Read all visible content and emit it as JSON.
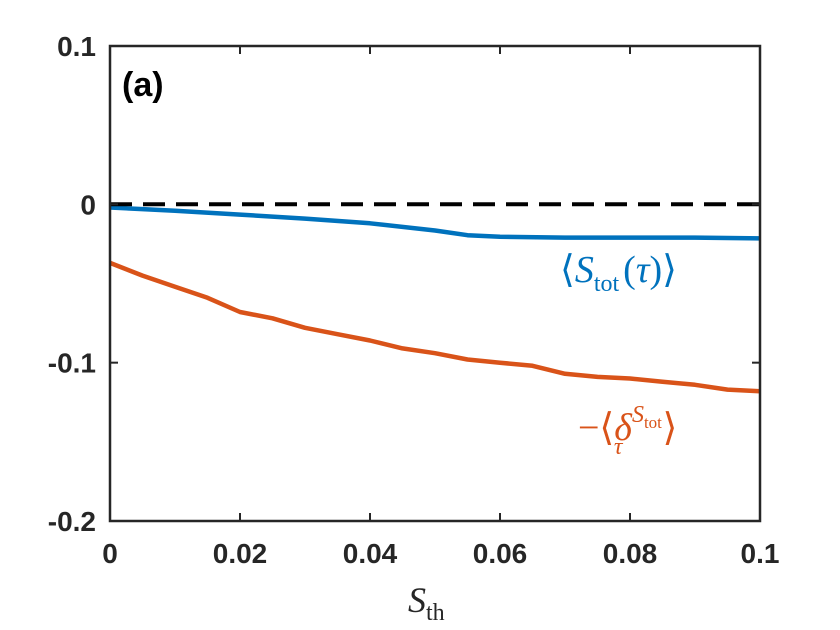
{
  "chart_data": {
    "type": "line",
    "panel_label": "(a)",
    "xlim": [
      0,
      0.1
    ],
    "ylim": [
      -0.2,
      0.1
    ],
    "xticks": [
      "0",
      "0.02",
      "0.04",
      "0.06",
      "0.08",
      "0.1"
    ],
    "yticks": [
      "0.1",
      "0",
      "-0.1",
      "-0.2"
    ],
    "xlabel": {
      "var": "S",
      "sub": "th"
    },
    "series": [
      {
        "name": "S_tot(tau)",
        "color": "#0072BD",
        "label": {
          "open": "⟨",
          "var": "S",
          "sub": "tot",
          "args": "(τ)",
          "close": "⟩"
        },
        "x": [
          0,
          0.005,
          0.01,
          0.02,
          0.03,
          0.04,
          0.05,
          0.055,
          0.06,
          0.07,
          0.08,
          0.09,
          0.1
        ],
        "y": [
          -0.002,
          -0.003,
          -0.004,
          -0.0065,
          -0.009,
          -0.012,
          -0.0165,
          -0.0195,
          -0.0205,
          -0.021,
          -0.021,
          -0.021,
          -0.0215
        ]
      },
      {
        "name": "-delta_tau^S_tot",
        "color": "#D95319",
        "label": {
          "prefix": "−⟨",
          "var": "δ",
          "sub": "τ",
          "sup": "S",
          "supsub": "tot",
          "close": "⟩"
        },
        "x": [
          0,
          0.005,
          0.01,
          0.015,
          0.02,
          0.025,
          0.03,
          0.035,
          0.04,
          0.045,
          0.05,
          0.055,
          0.06,
          0.065,
          0.07,
          0.075,
          0.08,
          0.085,
          0.09,
          0.095,
          0.1
        ],
        "y": [
          -0.037,
          -0.045,
          -0.052,
          -0.059,
          -0.068,
          -0.072,
          -0.078,
          -0.082,
          -0.086,
          -0.091,
          -0.094,
          -0.098,
          -0.1,
          -0.102,
          -0.107,
          -0.109,
          -0.11,
          -0.112,
          -0.114,
          -0.117,
          -0.118
        ]
      },
      {
        "name": "zero",
        "color": "#000000",
        "style": "dashed",
        "x": [
          0,
          0.1
        ],
        "y": [
          0,
          0
        ]
      }
    ]
  }
}
